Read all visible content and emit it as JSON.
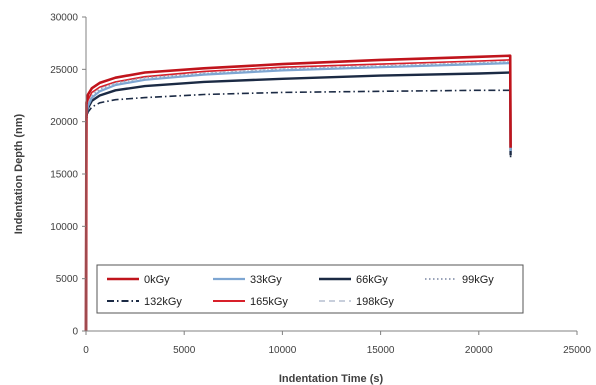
{
  "chart_data": {
    "type": "line",
    "title": "",
    "xlabel": "Indentation Time (s)",
    "ylabel": "Indentation Depth (nm)",
    "xlim": [
      0,
      25000
    ],
    "ylim": [
      0,
      30000
    ],
    "xticks": [
      0,
      5000,
      10000,
      15000,
      20000,
      25000
    ],
    "yticks": [
      0,
      5000,
      10000,
      15000,
      20000,
      25000,
      30000
    ],
    "legend_position": "inside-bottom",
    "series": [
      {
        "name": "0kGy",
        "color": "#c0141c",
        "dash": "solid",
        "width": 2.6,
        "x": [
          0,
          20,
          100,
          300,
          700,
          1500,
          3000,
          6000,
          10000,
          15000,
          20000,
          21600,
          21620
        ],
        "y": [
          0,
          21800,
          22600,
          23200,
          23700,
          24200,
          24700,
          25100,
          25500,
          25900,
          26200,
          26300,
          17500
        ]
      },
      {
        "name": "33kGy",
        "color": "#7ea6d2",
        "dash": "solid",
        "width": 2.2,
        "x": [
          0,
          20,
          100,
          300,
          700,
          1500,
          3000,
          6000,
          10000,
          15000,
          20000,
          21600,
          21620
        ],
        "y": [
          0,
          20600,
          21500,
          22300,
          22900,
          23500,
          24000,
          24500,
          24900,
          25200,
          25500,
          25600,
          17200
        ]
      },
      {
        "name": "66kGy",
        "color": "#1b2a44",
        "dash": "solid",
        "width": 2.4,
        "x": [
          0,
          20,
          100,
          300,
          700,
          1500,
          3000,
          6000,
          10000,
          15000,
          20000,
          21600,
          21620
        ],
        "y": [
          0,
          20500,
          21300,
          22000,
          22500,
          23000,
          23400,
          23800,
          24100,
          24400,
          24600,
          24700,
          16800
        ]
      },
      {
        "name": "99kGy",
        "color": "#9aa3b8",
        "dash": "dot",
        "width": 1.6,
        "x": [
          0,
          20,
          100,
          300,
          700,
          1500,
          3000,
          6000,
          10000,
          15000,
          20000,
          21600,
          21620
        ],
        "y": [
          0,
          20800,
          21700,
          22500,
          23100,
          23700,
          24200,
          24600,
          25000,
          25300,
          25600,
          25700,
          17000
        ]
      },
      {
        "name": "132kGy",
        "color": "#1b2a44",
        "dash": "dashdot",
        "width": 1.6,
        "x": [
          0,
          20,
          100,
          300,
          700,
          1500,
          3000,
          6000,
          10000,
          15000,
          20000,
          21600,
          21620
        ],
        "y": [
          0,
          20200,
          20900,
          21400,
          21800,
          22100,
          22300,
          22600,
          22800,
          22900,
          23000,
          23000,
          16600
        ]
      },
      {
        "name": "165kGy",
        "color": "#d8202a",
        "dash": "solid",
        "width": 1.6,
        "x": [
          0,
          20,
          100,
          300,
          700,
          1500,
          3000,
          6000,
          10000,
          15000,
          20000,
          21600,
          21620
        ],
        "y": [
          0,
          21300,
          22100,
          22800,
          23300,
          23800,
          24300,
          24800,
          25200,
          25500,
          25800,
          25900,
          17400
        ]
      },
      {
        "name": "198kGy",
        "color": "#c8cfdc",
        "dash": "dash",
        "width": 1.4,
        "x": [
          0,
          20,
          100,
          300,
          700,
          1500,
          3000,
          6000,
          10000,
          15000,
          20000,
          21600,
          21620
        ],
        "y": [
          0,
          21000,
          21900,
          22700,
          23200,
          23700,
          24200,
          24700,
          25100,
          25400,
          25700,
          25800,
          17300
        ]
      }
    ]
  }
}
